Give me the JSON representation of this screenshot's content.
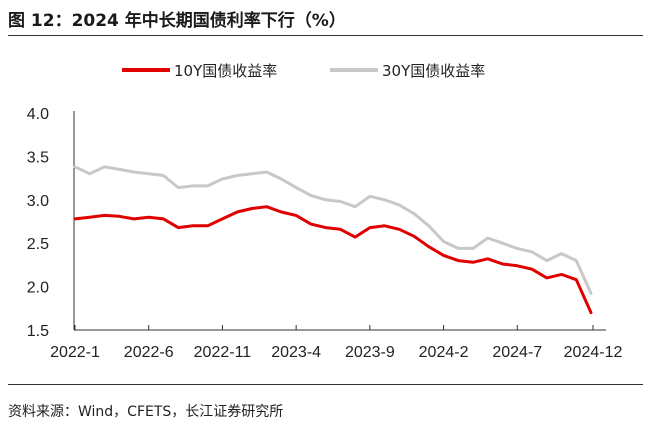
{
  "figure": {
    "title": "图 12：2024 年中长期国债利率下行（%）",
    "source": "资料来源：Wind，CFETS，长江证券研究所"
  },
  "chart_data": {
    "type": "line",
    "title": "",
    "xlabel": "",
    "ylabel": "",
    "ylim": [
      1.5,
      4.0
    ],
    "y_ticks": [
      "4.0",
      "3.5",
      "3.0",
      "2.5",
      "2.0",
      "1.5"
    ],
    "x_tick_labels": [
      "2022-1",
      "2022-6",
      "2022-11",
      "2023-4",
      "2023-9",
      "2024-2",
      "2024-7",
      "2024-12"
    ],
    "x_range": [
      "2022-01",
      "2024-12"
    ],
    "legend_position": "top-center",
    "grid": false,
    "x": [
      "2022-01",
      "2022-02",
      "2022-03",
      "2022-04",
      "2022-05",
      "2022-06",
      "2022-07",
      "2022-08",
      "2022-09",
      "2022-10",
      "2022-11",
      "2022-12",
      "2023-01",
      "2023-02",
      "2023-03",
      "2023-04",
      "2023-05",
      "2023-06",
      "2023-07",
      "2023-08",
      "2023-09",
      "2023-10",
      "2023-11",
      "2023-12",
      "2024-01",
      "2024-02",
      "2024-03",
      "2024-04",
      "2024-05",
      "2024-06",
      "2024-07",
      "2024-08",
      "2024-09",
      "2024-10",
      "2024-11",
      "2024-12"
    ],
    "series": [
      {
        "name": "10Y国债收益率",
        "color": "#e00000",
        "values": [
          2.78,
          2.8,
          2.82,
          2.81,
          2.78,
          2.8,
          2.78,
          2.68,
          2.7,
          2.7,
          2.78,
          2.86,
          2.9,
          2.92,
          2.86,
          2.82,
          2.72,
          2.68,
          2.66,
          2.57,
          2.68,
          2.7,
          2.66,
          2.58,
          2.46,
          2.36,
          2.3,
          2.28,
          2.32,
          2.26,
          2.24,
          2.2,
          2.1,
          2.14,
          2.08,
          1.7
        ]
      },
      {
        "name": "30Y国债收益率",
        "color": "#c8c8c8",
        "values": [
          3.38,
          3.3,
          3.38,
          3.35,
          3.32,
          3.3,
          3.28,
          3.14,
          3.16,
          3.16,
          3.24,
          3.28,
          3.3,
          3.32,
          3.24,
          3.14,
          3.05,
          3.0,
          2.98,
          2.92,
          3.04,
          3.0,
          2.94,
          2.84,
          2.7,
          2.52,
          2.44,
          2.44,
          2.56,
          2.5,
          2.44,
          2.4,
          2.3,
          2.38,
          2.3,
          1.92
        ]
      }
    ]
  }
}
